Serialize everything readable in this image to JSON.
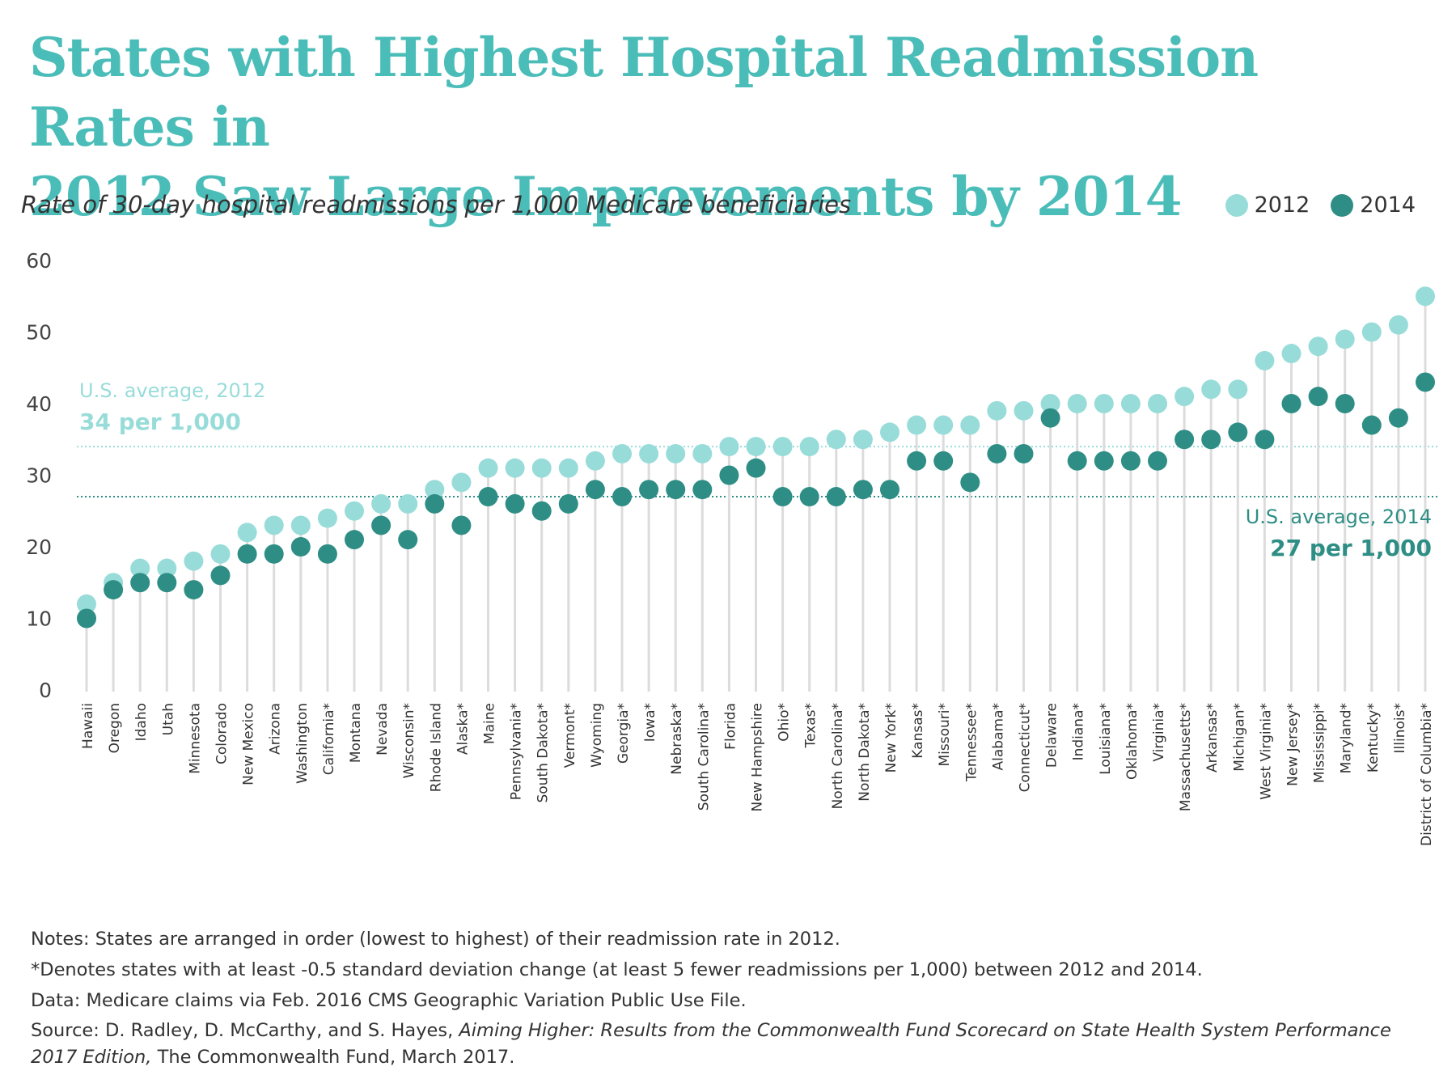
{
  "title": {
    "line1": "States with Highest Hospital Readmission Rates in",
    "line2": "2012 Saw Large Improvements by 2014"
  },
  "subtitle": "Rate of 30-day hospital readmissions per 1,000 Medicare beneficiaries",
  "legend": [
    {
      "label": "2012",
      "color": "#98dcd9"
    },
    {
      "label": "2014",
      "color": "#2e8e85"
    }
  ],
  "annotations": {
    "avg2012_label": "U.S. average, 2012",
    "avg2012_value": "34 per 1,000",
    "avg2014_label": "U.S. average, 2014",
    "avg2014_value": "27 per 1,000"
  },
  "chart_data": {
    "type": "scatter",
    "ylim": [
      0,
      60
    ],
    "yticks": [
      0,
      10,
      20,
      30,
      40,
      50,
      60
    ],
    "categories": [
      "Hawaii",
      "Oregon",
      "Idaho",
      "Utah",
      "Minnesota",
      "Colorado",
      "New Mexico",
      "Arizona",
      "Washington",
      "California*",
      "Montana",
      "Nevada",
      "Wisconsin*",
      "Rhode Island",
      "Alaska*",
      "Maine",
      "Pennsylvania*",
      "South Dakota*",
      "Vermont*",
      "Wyoming",
      "Georgia*",
      "Iowa*",
      "Nebraska*",
      "South Carolina*",
      "Florida",
      "New Hampshire",
      "Ohio*",
      "Texas*",
      "North Carolina*",
      "North Dakota*",
      "New York*",
      "Kansas*",
      "Missouri*",
      "Tennessee*",
      "Alabama*",
      "Connecticut*",
      "Delaware",
      "Indiana*",
      "Louisiana*",
      "Oklahoma*",
      "Virginia*",
      "Massachusetts*",
      "Arkansas*",
      "Michigan*",
      "West Virginia*",
      "New Jersey*",
      "Mississippi*",
      "Maryland*",
      "Kentucky*",
      "Illinois*",
      "District of Columbia*"
    ],
    "series": [
      {
        "name": "2012",
        "color": "#98dcd9",
        "values": [
          12,
          15,
          17,
          17,
          18,
          19,
          22,
          23,
          23,
          24,
          25,
          26,
          26,
          28,
          29,
          31,
          31,
          31,
          31,
          32,
          33,
          33,
          33,
          33,
          34,
          34,
          34,
          34,
          35,
          35,
          36,
          37,
          37,
          37,
          39,
          39,
          40,
          40,
          40,
          40,
          40,
          41,
          42,
          42,
          46,
          47,
          48,
          49,
          50,
          51,
          55
        ]
      },
      {
        "name": "2014",
        "color": "#2e8e85",
        "values": [
          10,
          14,
          15,
          15,
          14,
          16,
          19,
          19,
          20,
          19,
          21,
          23,
          21,
          26,
          23,
          27,
          26,
          25,
          26,
          28,
          27,
          28,
          28,
          28,
          30,
          31,
          27,
          27,
          27,
          28,
          28,
          32,
          32,
          29,
          33,
          33,
          38,
          32,
          32,
          32,
          32,
          35,
          35,
          36,
          35,
          40,
          41,
          40,
          37,
          38,
          43
        ]
      }
    ],
    "reference_lines": [
      {
        "label": "U.S. average, 2012",
        "value": 34,
        "color": "#98dcd9"
      },
      {
        "label": "U.S. average, 2014",
        "value": 27,
        "color": "#2e8e85"
      }
    ]
  },
  "notes": {
    "n1": "Notes: States are arranged in order (lowest to highest) of their readmission rate in 2012.",
    "n2": "*Denotes states with at least -0.5 standard deviation change (at least 5 fewer readmissions per 1,000) between 2012 and 2014.",
    "n3": "Data: Medicare claims via Feb. 2016 CMS Geographic Variation Public Use File.",
    "source_prefix": "Source: D. Radley, D. McCarthy, and S. Hayes, ",
    "source_title": "Aiming Higher: Results from the Commonwealth Fund Scorecard on State Health System Performance 2017 Edition,",
    "source_suffix": " The Commonwealth Fund, March 2017."
  }
}
